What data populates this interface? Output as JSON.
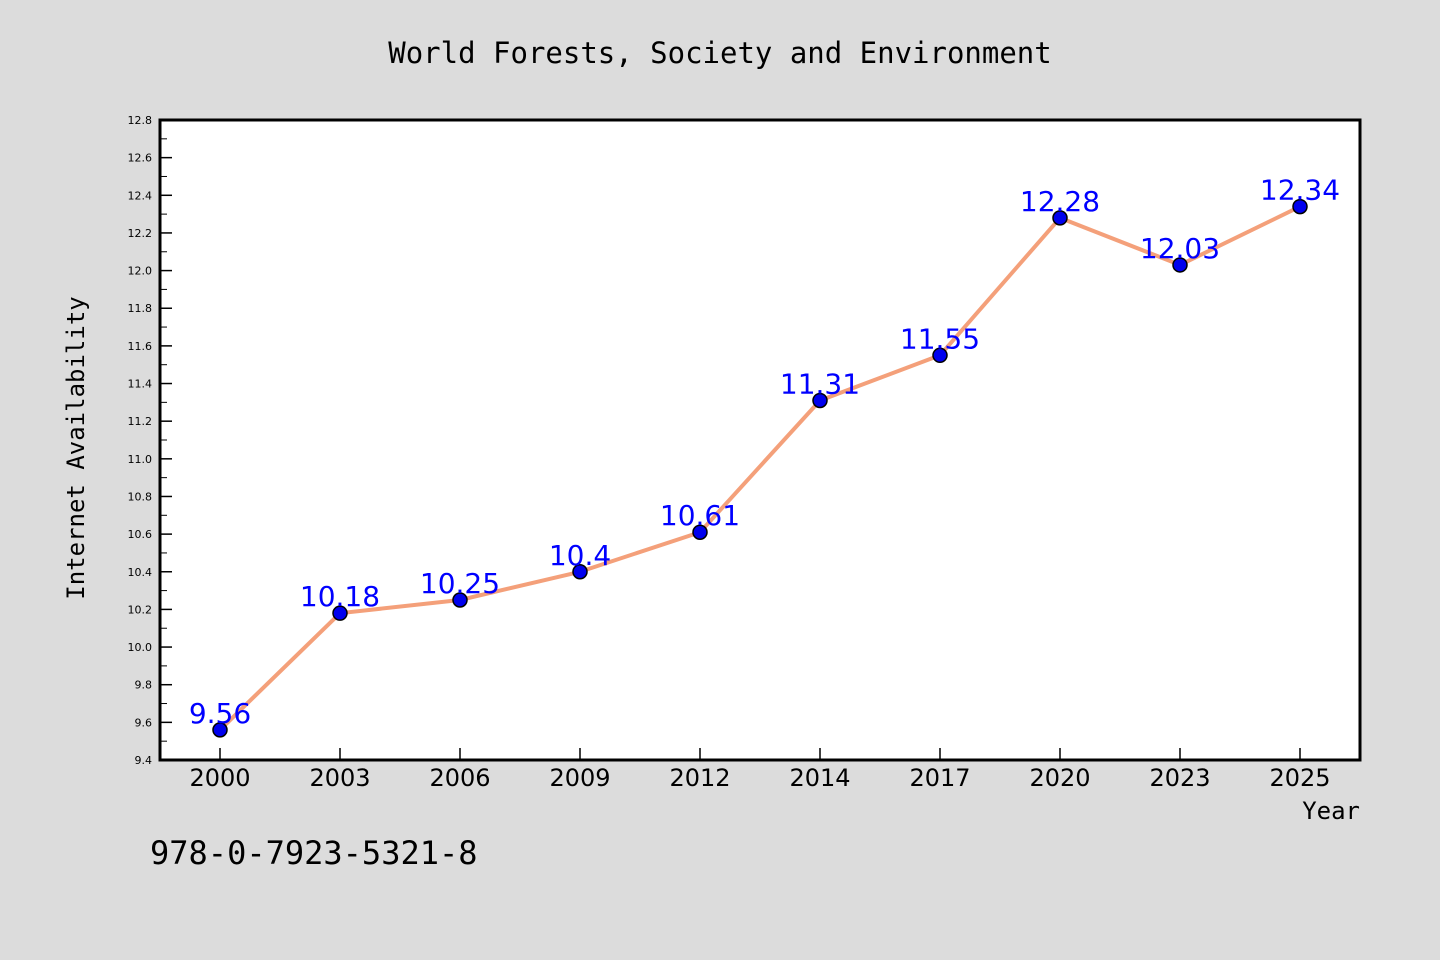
{
  "chart_data": {
    "type": "line",
    "title": "World Forests, Society and Environment",
    "xlabel": "Year",
    "ylabel": "Internet Availability",
    "categories": [
      "2000",
      "2003",
      "2006",
      "2009",
      "2012",
      "2014",
      "2017",
      "2020",
      "2023",
      "2025"
    ],
    "series": [
      {
        "values": [
          9.56,
          10.18,
          10.25,
          10.4,
          10.61,
          11.31,
          11.55,
          12.28,
          12.03,
          12.34
        ],
        "data_labels": [
          "9.56",
          "10.18",
          "10.25",
          "10.4",
          "10.61",
          "11.31",
          "11.55",
          "12.28",
          "12.03",
          "12.34"
        ],
        "line_color": "#f4a07a",
        "marker_color": "#0000ee",
        "label_color": "#0000ff"
      }
    ],
    "ylim": [
      9.4,
      12.8
    ],
    "yticks": [
      "9.4",
      "9.6",
      "9.8",
      "10.0",
      "10.2",
      "10.4",
      "10.6",
      "10.8",
      "11.0",
      "11.2",
      "11.4",
      "11.6",
      "11.8",
      "12.0",
      "12.2",
      "12.4",
      "12.6",
      "12.8"
    ],
    "grid": false,
    "legend": "none"
  },
  "footnote": "978-0-7923-5321-8",
  "colors": {
    "background": "#dcdcdc",
    "plot_background": "#ffffff"
  }
}
